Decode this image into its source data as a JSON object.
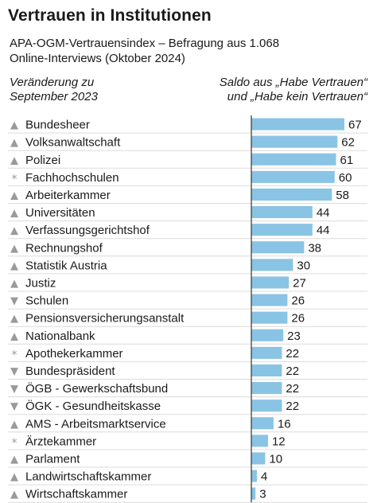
{
  "title": "Vertrauen in Institutionen",
  "subtitle": [
    "APA-OGM-Vertrauensindex – Befragung aus 1.068",
    "Online-Interviews (Oktober 2024)"
  ],
  "header_left": [
    "Veränderung zu",
    "September 2023"
  ],
  "header_right": [
    "Saldo aus „Habe Vertrauen“",
    "und „Habe kein Vertrauen“"
  ],
  "colors": {
    "bar": "#8ac4e4",
    "axis": "#333333",
    "text": "#1a1a1a",
    "marker": "#9a9a9a",
    "separator": "#dcdcdc"
  },
  "chart_data": {
    "type": "bar",
    "orientation": "horizontal",
    "title": "Vertrauen in Institutionen",
    "xlim": [
      0,
      67
    ],
    "categories": [
      "Bundesheer",
      "Volksanwaltschaft",
      "Polizei",
      "Fachhochschulen",
      "Arbeiterkammer",
      "Universitäten",
      "Verfassungsgerichtshof",
      "Rechnungshof",
      "Statistik Austria",
      "Justiz",
      "Schulen",
      "Pensionsversicherungsanstalt",
      "Nationalbank",
      "Apothekerkammer",
      "Bundespräsident",
      "ÖGB - Gewerkschaftsbund",
      "ÖGK - Gesundheitskasse",
      "AMS - Arbeitsmarktservice",
      "Ärztekammer",
      "Parlament",
      "Landwirtschaftskammer",
      "Wirtschaftskammer"
    ],
    "values": [
      67,
      62,
      61,
      60,
      58,
      44,
      44,
      38,
      30,
      27,
      26,
      26,
      23,
      22,
      22,
      22,
      22,
      16,
      12,
      10,
      4,
      3
    ],
    "change": [
      "up",
      "up",
      "up",
      "new",
      "up",
      "up",
      "up",
      "up",
      "up",
      "up",
      "down",
      "up",
      "up",
      "new",
      "down",
      "down",
      "down",
      "up",
      "new",
      "up",
      "up",
      "up"
    ],
    "markers": {
      "up": "▲",
      "down": "▼",
      "new": "*"
    }
  }
}
